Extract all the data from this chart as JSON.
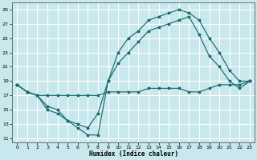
{
  "xlabel": "Humidex (Indice chaleur)",
  "bg_color": "#c8e8ed",
  "grid_color": "#ffffff",
  "line_color": "#1a6b6b",
  "xlim": [
    -0.5,
    23.5
  ],
  "ylim": [
    10.5,
    30.0
  ],
  "yticks": [
    11,
    13,
    15,
    17,
    19,
    21,
    23,
    25,
    27,
    29
  ],
  "xticks": [
    0,
    1,
    2,
    3,
    4,
    5,
    6,
    7,
    8,
    9,
    10,
    11,
    12,
    13,
    14,
    15,
    16,
    17,
    18,
    19,
    20,
    21,
    22,
    23
  ],
  "series_1_x": [
    0,
    1,
    2,
    3,
    4,
    5,
    6,
    7,
    8,
    9,
    10,
    11,
    12,
    13,
    14,
    15,
    16,
    17,
    18,
    19,
    20,
    21,
    22,
    23
  ],
  "series_1_y": [
    18.5,
    17.5,
    17.0,
    15.0,
    14.5,
    13.5,
    12.5,
    11.5,
    11.5,
    19.0,
    23.0,
    25.0,
    26.0,
    27.5,
    28.0,
    28.5,
    29.0,
    28.5,
    27.5,
    25.0,
    23.0,
    20.5,
    19.0,
    19.0
  ],
  "series_2_x": [
    0,
    1,
    2,
    3,
    4,
    5,
    6,
    7,
    8,
    9,
    10,
    11,
    12,
    13,
    14,
    15,
    16,
    17,
    18,
    19,
    20,
    21,
    22,
    23
  ],
  "series_2_y": [
    18.5,
    17.5,
    17.0,
    15.5,
    15.0,
    13.5,
    13.0,
    12.5,
    14.5,
    19.0,
    21.5,
    23.0,
    24.5,
    26.0,
    26.5,
    27.0,
    27.5,
    28.0,
    25.5,
    22.5,
    21.0,
    19.0,
    18.0,
    19.0
  ],
  "series_3_x": [
    0,
    1,
    2,
    3,
    4,
    5,
    6,
    7,
    8,
    9,
    10,
    11,
    12,
    13,
    14,
    15,
    16,
    17,
    18,
    19,
    20,
    21,
    22,
    23
  ],
  "series_3_y": [
    18.5,
    17.5,
    17.0,
    17.0,
    17.0,
    17.0,
    17.0,
    17.0,
    17.0,
    17.5,
    17.5,
    17.5,
    17.5,
    18.0,
    18.0,
    18.0,
    18.0,
    17.5,
    17.5,
    18.0,
    18.5,
    18.5,
    18.5,
    19.0
  ]
}
